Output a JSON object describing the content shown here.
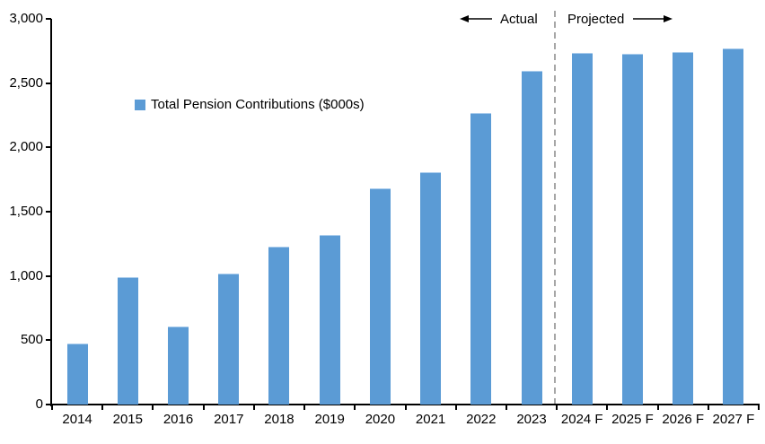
{
  "header": {
    "actual_label": "Actual",
    "projected_label": "Projected"
  },
  "legend": {
    "label": "Total Pension Contributions ($000s)"
  },
  "colors": {
    "bar": "#5B9BD5",
    "divider": "#A6A6A6",
    "axis": "#000000",
    "text": "#000000"
  },
  "chart_data": {
    "type": "bar",
    "title": "",
    "xlabel": "",
    "ylabel": "",
    "series_name": "Total Pension Contributions ($000s)",
    "categories": [
      "2014",
      "2015",
      "2016",
      "2017",
      "2018",
      "2019",
      "2020",
      "2021",
      "2022",
      "2023",
      "2024 F",
      "2025 F",
      "2026 F",
      "2027 F"
    ],
    "values": [
      475,
      990,
      610,
      1020,
      1230,
      1320,
      1680,
      1805,
      2265,
      2595,
      2735,
      2725,
      2745,
      2770
    ],
    "ylim": [
      0,
      3000
    ],
    "ytick_step": 500,
    "ytick_labels": [
      "0",
      "500",
      "1,000",
      "1,500",
      "2,000",
      "2,500",
      "3,000"
    ],
    "grid": false,
    "legend_position": "inside-upper-left",
    "actual_section_last_category": "2023",
    "divider_before_index": 10
  }
}
